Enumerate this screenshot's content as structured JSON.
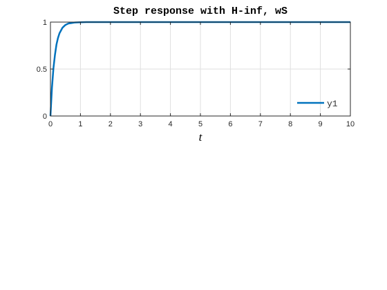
{
  "chart_data": {
    "type": "line",
    "title": "Step response with H-inf, wS",
    "xlabel": "t",
    "ylabel": "",
    "xlim": [
      0,
      10
    ],
    "ylim": [
      0,
      1
    ],
    "x_ticks": [
      0,
      1,
      2,
      3,
      4,
      5,
      6,
      7,
      8,
      9,
      10
    ],
    "y_ticks": [
      0,
      0.5,
      1
    ],
    "x_tick_labels": [
      "0",
      "1",
      "2",
      "3",
      "4",
      "5",
      "6",
      "7",
      "8",
      "9",
      "10"
    ],
    "y_tick_labels": [
      "0",
      "0.5",
      "1"
    ],
    "grid": true,
    "legend_position": "bottom-right",
    "series": [
      {
        "name": "y1",
        "color": "#0072BD",
        "x": [
          0,
          0.05,
          0.1,
          0.15,
          0.2,
          0.25,
          0.3,
          0.35,
          0.4,
          0.5,
          0.6,
          0.7,
          0.8,
          1.0,
          1.2,
          1.5,
          2,
          3,
          4,
          5,
          6,
          7,
          8,
          9,
          10
        ],
        "y": [
          0,
          0.3,
          0.51,
          0.65,
          0.76,
          0.83,
          0.88,
          0.91,
          0.94,
          0.97,
          0.985,
          0.99,
          0.995,
          0.998,
          1.0,
          1.0,
          1.0,
          1.0,
          1.0,
          1.0,
          1.0,
          1.0,
          1.0,
          1.0,
          1.0
        ]
      }
    ]
  }
}
